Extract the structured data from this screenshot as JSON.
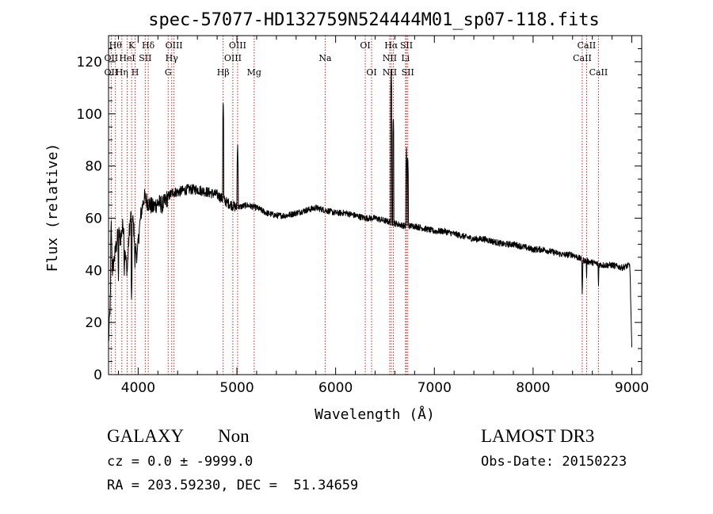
{
  "chart_data": {
    "type": "line",
    "title": "spec-57077-HD132759N524444M01_sp07-118.fits",
    "xlabel": "Wavelength (Å)",
    "ylabel": "Flux (relative)",
    "xlim": [
      3700,
      9100
    ],
    "ylim": [
      0,
      130
    ],
    "xticks": [
      4000,
      5000,
      6000,
      7000,
      8000,
      9000
    ],
    "yticks": [
      0,
      20,
      40,
      60,
      80,
      100,
      120
    ],
    "series": [
      {
        "name": "flux",
        "x": [
          3700,
          3720,
          3730,
          3740,
          3760,
          3780,
          3800,
          3820,
          3850,
          3870,
          3890,
          3910,
          3930,
          3950,
          3970,
          3990,
          4010,
          4030,
          4060,
          4100,
          4150,
          4200,
          4250,
          4300,
          4350,
          4400,
          4500,
          4600,
          4700,
          4800,
          4900,
          5000,
          5100,
          5200,
          5300,
          5400,
          5500,
          5600,
          5700,
          5800,
          5900,
          6000,
          6100,
          6200,
          6300,
          6400,
          6500,
          6600,
          6700,
          6800,
          6900,
          7000,
          7100,
          7200,
          7300,
          7400,
          7500,
          7600,
          7700,
          7800,
          7900,
          8000,
          8100,
          8200,
          8300,
          8400,
          8500,
          8600,
          8700,
          8800,
          8900,
          8980,
          9000
        ],
        "y": [
          12,
          30,
          48,
          40,
          45,
          50,
          55,
          52,
          58,
          45,
          40,
          55,
          62,
          58,
          50,
          45,
          55,
          62,
          68,
          66,
          64,
          66,
          65,
          68,
          70,
          70,
          71,
          71,
          70,
          69,
          66,
          64,
          65,
          64,
          62,
          61,
          61,
          62,
          63,
          64,
          63,
          62,
          62,
          61,
          60,
          60,
          59,
          58,
          57,
          57,
          56,
          55,
          55,
          54,
          53,
          52,
          52,
          51,
          50,
          50,
          49,
          48,
          48,
          47,
          46,
          46,
          44,
          43,
          42,
          42,
          41,
          42,
          10
        ]
      }
    ],
    "emission_spikes": [
      {
        "x": 3727,
        "y": 60
      },
      {
        "x": 4861,
        "y": 106
      },
      {
        "x": 5007,
        "y": 89
      },
      {
        "x": 6563,
        "y": 118
      },
      {
        "x": 6584,
        "y": 100
      },
      {
        "x": 6717,
        "y": 88
      },
      {
        "x": 6731,
        "y": 85
      }
    ],
    "absorption_dips": [
      {
        "x": 3800,
        "y": 36
      },
      {
        "x": 3860,
        "y": 38
      },
      {
        "x": 3933,
        "y": 28
      },
      {
        "x": 3968,
        "y": 40
      },
      {
        "x": 8498,
        "y": 30
      },
      {
        "x": 8542,
        "y": 36
      },
      {
        "x": 8662,
        "y": 33
      }
    ],
    "line_markers": [
      {
        "x": 3727,
        "labels": [
          {
            "text": "OII",
            "row": 2
          },
          {
            "text": "OII",
            "row": 3
          }
        ]
      },
      {
        "x": 3770,
        "labels": [
          {
            "text": "Hθ",
            "row": 1
          }
        ]
      },
      {
        "x": 3835,
        "labels": [
          {
            "text": "Hη",
            "row": 3
          }
        ]
      },
      {
        "x": 3889,
        "labels": [
          {
            "text": "HeI",
            "row": 2
          }
        ]
      },
      {
        "x": 3934,
        "labels": [
          {
            "text": "K",
            "row": 1
          }
        ]
      },
      {
        "x": 3969,
        "labels": [
          {
            "text": "H",
            "row": 3
          }
        ]
      },
      {
        "x": 4072,
        "labels": [
          {
            "text": "SII",
            "row": 2
          }
        ]
      },
      {
        "x": 4102,
        "labels": [
          {
            "text": "Hδ",
            "row": 1
          }
        ]
      },
      {
        "x": 4304,
        "labels": [
          {
            "text": "G",
            "row": 3
          }
        ]
      },
      {
        "x": 4340,
        "labels": [
          {
            "text": "Hγ",
            "row": 2
          }
        ]
      },
      {
        "x": 4363,
        "labels": [
          {
            "text": "OIII",
            "row": 1
          }
        ]
      },
      {
        "x": 4861,
        "labels": [
          {
            "text": "Hβ",
            "row": 3
          }
        ]
      },
      {
        "x": 4959,
        "labels": [
          {
            "text": "OIII",
            "row": 2
          }
        ]
      },
      {
        "x": 5007,
        "labels": [
          {
            "text": "OIII",
            "row": 1
          }
        ]
      },
      {
        "x": 5175,
        "labels": [
          {
            "text": "Mg",
            "row": 3
          }
        ]
      },
      {
        "x": 5894,
        "labels": [
          {
            "text": "Na",
            "row": 2
          }
        ]
      },
      {
        "x": 6300,
        "labels": [
          {
            "text": "OI",
            "row": 1
          }
        ]
      },
      {
        "x": 6364,
        "labels": [
          {
            "text": "OI",
            "row": 3
          }
        ]
      },
      {
        "x": 6548,
        "labels": [
          {
            "text": "NII",
            "row": 2
          },
          {
            "text": "NII",
            "row": 3
          }
        ]
      },
      {
        "x": 6563,
        "labels": [
          {
            "text": "Hα",
            "row": 1
          }
        ]
      },
      {
        "x": 6584,
        "labels": []
      },
      {
        "x": 6708,
        "labels": [
          {
            "text": "Li",
            "row": 2
          }
        ]
      },
      {
        "x": 6717,
        "labels": [
          {
            "text": "SII",
            "row": 1
          }
        ]
      },
      {
        "x": 6731,
        "labels": [
          {
            "text": "SII",
            "row": 3
          }
        ]
      },
      {
        "x": 8498,
        "labels": [
          {
            "text": "CaII",
            "row": 2
          }
        ]
      },
      {
        "x": 8542,
        "labels": [
          {
            "text": "CaII",
            "row": 1
          }
        ]
      },
      {
        "x": 8662,
        "labels": [
          {
            "text": "CaII",
            "row": 3
          }
        ]
      }
    ],
    "colors": {
      "spectrum": "#000000",
      "markers": "#cc2222",
      "axes": "#000000"
    }
  },
  "info": {
    "class": "GALAXY",
    "subclass": "Non",
    "survey": "LAMOST DR3",
    "cz": "cz = 0.0 ± -9999.0",
    "obs_date": "Obs-Date: 20150223",
    "coords": "RA = 203.59230, DEC =  51.34659"
  }
}
